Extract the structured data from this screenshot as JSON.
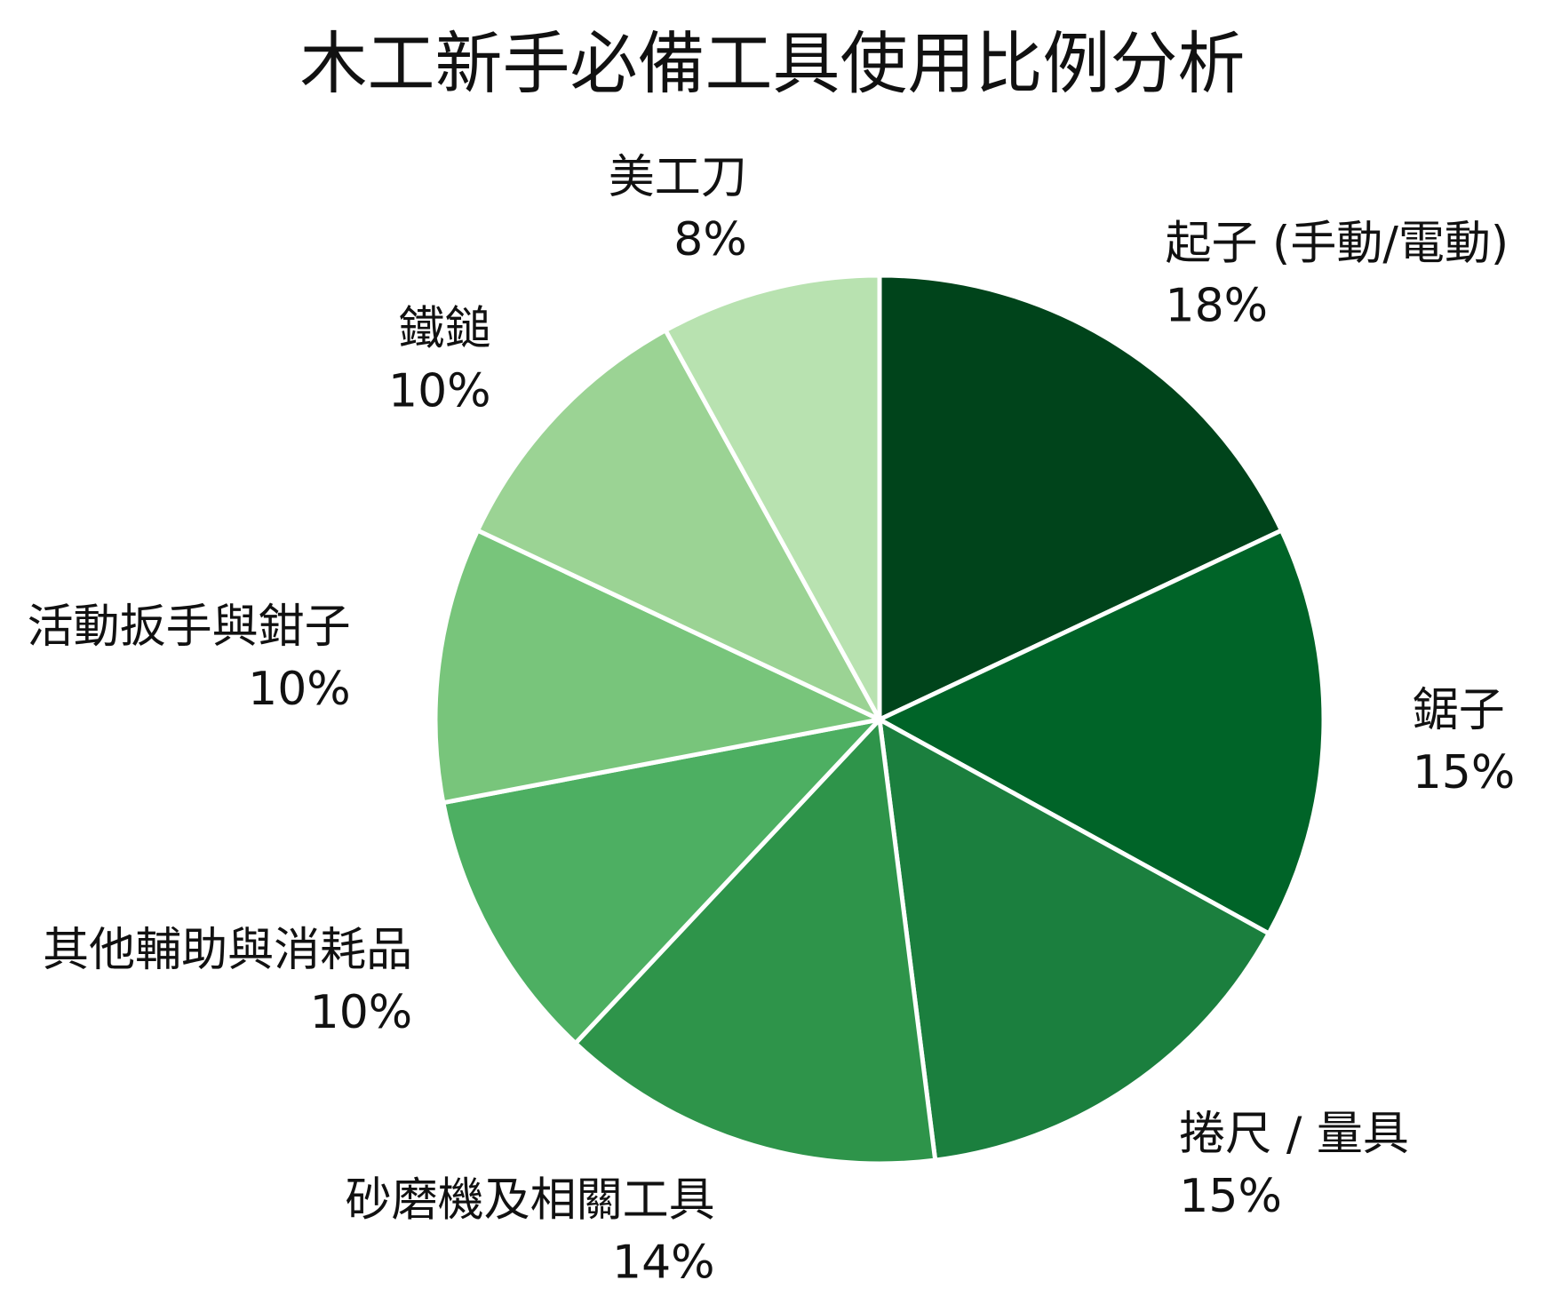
{
  "chart_data": {
    "type": "pie",
    "title": "木工新手必備工具使用比例分析",
    "value_format": "percent",
    "start": "top",
    "direction": "clockwise",
    "slices": [
      {
        "label": "起子 (手動/電動)",
        "value": 18,
        "display": "18%",
        "color": "#00441b"
      },
      {
        "label": "鋸子",
        "value": 15,
        "display": "15%",
        "color": "#006428"
      },
      {
        "label": "捲尺 / 量具",
        "value": 15,
        "display": "15%",
        "color": "#1b7f3e"
      },
      {
        "label": "砂磨機及相關工具",
        "value": 14,
        "display": "14%",
        "color": "#2e944a"
      },
      {
        "label": "其他輔助與消耗品",
        "value": 10,
        "display": "10%",
        "color": "#4daf62"
      },
      {
        "label": "活動扳手與鉗子",
        "value": 10,
        "display": "10%",
        "color": "#78c57b"
      },
      {
        "label": "鐵鎚",
        "value": 10,
        "display": "10%",
        "color": "#9bd394"
      },
      {
        "label": "美工刀",
        "value": 8,
        "display": "8%",
        "color": "#b8e2b0"
      }
    ]
  }
}
